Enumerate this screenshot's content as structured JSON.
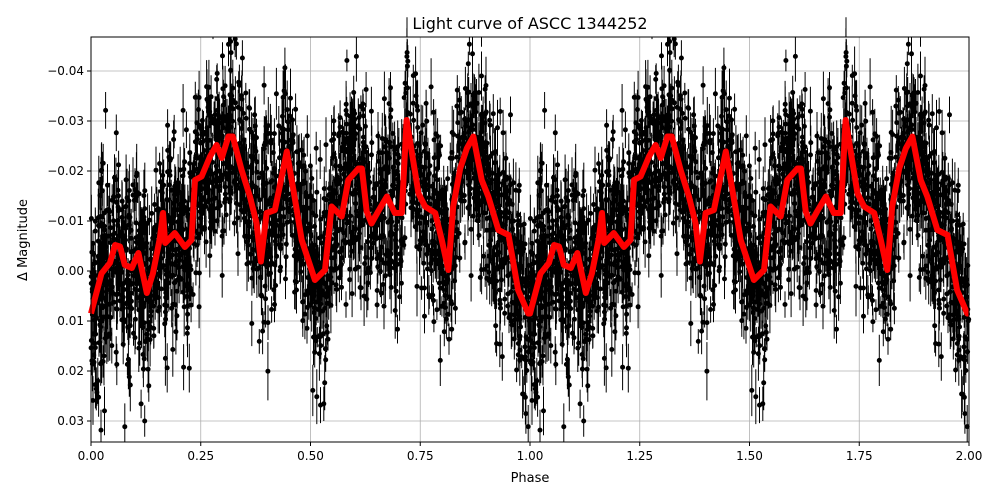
{
  "chart_data": {
    "type": "scatter",
    "title": "Light curve of ASCC 1344252",
    "xlabel": "Phase",
    "ylabel": "Δ Magnitude",
    "xlim": [
      0,
      2
    ],
    "ylim": [
      0.0342,
      -0.0468
    ],
    "y_inverted": true,
    "grid": true,
    "xticks": [
      "0.00",
      "0.25",
      "0.50",
      "0.75",
      "1.00",
      "1.25",
      "1.50",
      "1.75",
      "2.00"
    ],
    "yticks": [
      "−0.04",
      "−0.03",
      "−0.02",
      "−0.01",
      "0.00",
      "0.01",
      "0.02",
      "0.03"
    ],
    "colors": {
      "points": "#000000",
      "binned_curve": "#ff0000",
      "grid": "#b0b0b0"
    },
    "binned_curve": {
      "period": 1,
      "phase": [
        0.0,
        0.024,
        0.043,
        0.055,
        0.066,
        0.077,
        0.093,
        0.108,
        0.127,
        0.141,
        0.157,
        0.164,
        0.169,
        0.191,
        0.214,
        0.229,
        0.237,
        0.252,
        0.271,
        0.286,
        0.298,
        0.313,
        0.323,
        0.343,
        0.362,
        0.377,
        0.387,
        0.4,
        0.419,
        0.446,
        0.465,
        0.48,
        0.51,
        0.533,
        0.548,
        0.571,
        0.586,
        0.609,
        0.617,
        0.628,
        0.639,
        0.654,
        0.674,
        0.692,
        0.708,
        0.719,
        0.746,
        0.761,
        0.784,
        0.799,
        0.814,
        0.825,
        0.841,
        0.856,
        0.871,
        0.89,
        0.905,
        0.928,
        0.951,
        0.973,
        0.996
      ],
      "magnitude": [
        0.0085,
        0.0005,
        -0.0016,
        -0.0052,
        -0.0049,
        -0.0012,
        -0.0006,
        -0.0036,
        0.0044,
        0.0005,
        -0.0066,
        -0.0116,
        -0.0056,
        -0.0076,
        -0.0048,
        -0.0062,
        -0.0182,
        -0.0189,
        -0.0229,
        -0.0252,
        -0.0226,
        -0.0269,
        -0.0269,
        -0.0202,
        -0.0149,
        -0.0096,
        -0.0019,
        -0.0116,
        -0.0122,
        -0.0239,
        -0.0142,
        -0.0062,
        0.0018,
        -0.0002,
        -0.0129,
        -0.0109,
        -0.0182,
        -0.0205,
        -0.0205,
        -0.0119,
        -0.0095,
        -0.0119,
        -0.0149,
        -0.0116,
        -0.0116,
        -0.0302,
        -0.0155,
        -0.0129,
        -0.0116,
        -0.0062,
        -0.0002,
        -0.0129,
        -0.0205,
        -0.0245,
        -0.0269,
        -0.0182,
        -0.0149,
        -0.0082,
        -0.0072,
        0.0038,
        0.0085
      ]
    }
  }
}
